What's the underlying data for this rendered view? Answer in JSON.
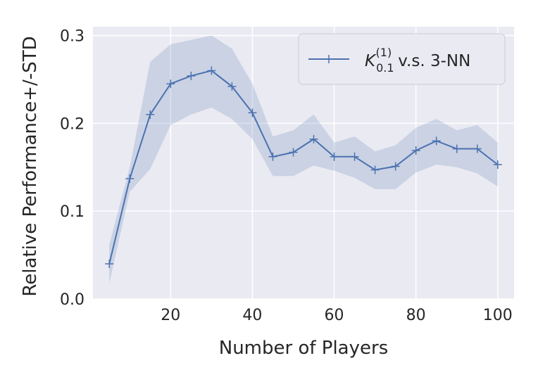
{
  "chart_data": {
    "type": "line",
    "xlabel": "Number of Players",
    "ylabel": "Relative Performance+/-STD",
    "xlim": [
      1,
      104
    ],
    "ylim": [
      0,
      0.31
    ],
    "xticks": [
      20,
      40,
      60,
      80,
      100
    ],
    "yticks": [
      0.0,
      0.1,
      0.2,
      0.3
    ],
    "xtick_labels": [
      "20",
      "40",
      "60",
      "80",
      "100"
    ],
    "ytick_labels": [
      "0.0",
      "0.1",
      "0.2",
      "0.3"
    ],
    "grid": true,
    "style": "seaborn darkgrid",
    "legend_position": "top-right",
    "colors": {
      "background": "#eaeaf2",
      "line": "#4c72b0",
      "band": "#4c72b0",
      "grid": "#ffffff"
    },
    "series": [
      {
        "name": "K_{0.1}^{(1)} v.s. 3-NN",
        "legend": {
          "symbol": "K",
          "subscript": "0.1",
          "superscript": "(1)",
          "suffix": "v.s. 3-NN"
        },
        "marker": "+",
        "x": [
          5,
          10,
          15,
          20,
          25,
          30,
          35,
          40,
          45,
          50,
          55,
          60,
          65,
          70,
          75,
          80,
          85,
          90,
          95,
          100
        ],
        "y": [
          0.04,
          0.137,
          0.21,
          0.245,
          0.254,
          0.26,
          0.242,
          0.212,
          0.162,
          0.167,
          0.182,
          0.162,
          0.162,
          0.147,
          0.151,
          0.169,
          0.18,
          0.171,
          0.171,
          0.153
        ],
        "upper": [
          0.062,
          0.15,
          0.27,
          0.29,
          0.295,
          0.3,
          0.285,
          0.245,
          0.185,
          0.192,
          0.21,
          0.178,
          0.185,
          0.168,
          0.175,
          0.195,
          0.205,
          0.192,
          0.198,
          0.178
        ],
        "lower": [
          0.018,
          0.122,
          0.148,
          0.198,
          0.21,
          0.218,
          0.205,
          0.182,
          0.14,
          0.14,
          0.152,
          0.146,
          0.138,
          0.125,
          0.125,
          0.144,
          0.153,
          0.15,
          0.143,
          0.128
        ]
      }
    ]
  }
}
